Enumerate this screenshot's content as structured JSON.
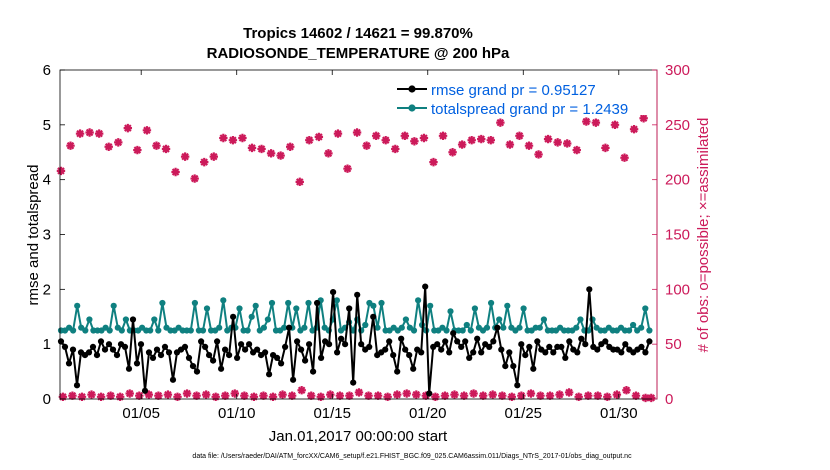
{
  "chart_data": {
    "type": "line",
    "title_line1": "Tropics 14602 / 14621 = 99.870%",
    "title_line2": "RADIOSONDE_TEMPERATURE @ 200 hPa",
    "xlabel": "Jan.01,2017 00:00:00 start",
    "ylabel_left": "rmse and totalspread",
    "ylabel_right": "# of obs: o=possible; ×=assimilated",
    "footer": "data file: /Users/raeder/DAI/ATM_forcXX/CAM6_setup/f.e21.FHIST_BGC.f09_025.CAM6assim.011/Diags_NTrS_2017-01/obs_diag_output.nc",
    "xlim": [
      0.75,
      32.0
    ],
    "ylim_left": [
      0,
      6
    ],
    "ylim_right": [
      0,
      300
    ],
    "left_ticks": [
      "0",
      "1",
      "2",
      "3",
      "4",
      "5",
      "6"
    ],
    "right_ticks": [
      "0",
      "50",
      "100",
      "150",
      "200",
      "250",
      "300"
    ],
    "x_ticks": [
      {
        "label": "01/05",
        "day": 5
      },
      {
        "label": "01/10",
        "day": 10
      },
      {
        "label": "01/15",
        "day": 15
      },
      {
        "label": "01/20",
        "day": 20
      },
      {
        "label": "01/25",
        "day": 25
      },
      {
        "label": "01/30",
        "day": 30
      }
    ],
    "colors": {
      "rmse": "#000000",
      "spread": "#0f8080",
      "obs": "#cc1a5a",
      "legend_text": "#0060e0"
    },
    "series": [
      {
        "name": "rmse grand pr = 0.95127",
        "axis": "left",
        "values": [
          1.05,
          0.95,
          0.65,
          0.9,
          0.25,
          0.85,
          0.8,
          0.85,
          0.95,
          0.8,
          1.05,
          0.9,
          1.0,
          0.9,
          0.8,
          1.0,
          0.95,
          0.55,
          1.45,
          0.65,
          1.0,
          0.15,
          0.85,
          0.75,
          0.9,
          0.8,
          0.95,
          0.85,
          0.35,
          0.85,
          0.9,
          0.95,
          0.75,
          0.6,
          0.5,
          1.05,
          0.95,
          0.8,
          0.7,
          1.05,
          0.55,
          0.9,
          0.8,
          1.5,
          0.75,
          1.0,
          0.9,
          1.0,
          0.85,
          0.9,
          0.8,
          0.85,
          0.45,
          0.8,
          0.75,
          0.65,
          0.95,
          1.3,
          0.35,
          1.05,
          0.9,
          0.7,
          1.0,
          0.5,
          1.75,
          0.75,
          1.05,
          1.0,
          1.95,
          0.85,
          1.1,
          1.0,
          1.65,
          0.3,
          1.9,
          1.0,
          0.9,
          0.95,
          1.5,
          0.8,
          0.85,
          0.9,
          1.05,
          0.8,
          0.5,
          1.1,
          0.9,
          0.8,
          0.55,
          0.9,
          0.85,
          2.05,
          0.1,
          0.95,
          1.0,
          0.9,
          1.05,
          0.85,
          1.2,
          1.05,
          0.95,
          1.05,
          0.75,
          0.85,
          1.1,
          0.85,
          1.0,
          0.95,
          1.05,
          1.3,
          0.9,
          0.6,
          0.85,
          0.6,
          0.25,
          1.0,
          0.8,
          0.95,
          0.55,
          1.05,
          0.9,
          0.85,
          0.95,
          0.85,
          0.95,
          0.95,
          0.75,
          1.05,
          0.9,
          0.85,
          1.1,
          1.0,
          2.0,
          0.95,
          0.9,
          1.0,
          1.05,
          0.95,
          0.9,
          0.9,
          0.85,
          1.0,
          0.9,
          0.85,
          0.9,
          0.95,
          0.85,
          1.05
        ]
      },
      {
        "name": "totalspread grand pr = 1.2439",
        "axis": "left",
        "values": [
          1.25,
          1.25,
          1.3,
          1.25,
          1.7,
          1.3,
          1.25,
          1.45,
          1.25,
          1.25,
          1.25,
          1.3,
          1.25,
          1.7,
          1.3,
          1.25,
          1.45,
          1.25,
          1.25,
          1.25,
          1.3,
          1.25,
          1.25,
          1.45,
          1.25,
          1.75,
          1.3,
          1.25,
          1.25,
          1.3,
          1.25,
          1.25,
          1.25,
          1.75,
          1.25,
          1.25,
          1.65,
          1.25,
          1.25,
          1.3,
          1.8,
          1.25,
          1.3,
          1.3,
          1.65,
          1.25,
          1.25,
          1.5,
          1.7,
          1.25,
          1.3,
          1.45,
          1.75,
          1.25,
          1.25,
          1.3,
          1.75,
          1.3,
          1.65,
          1.25,
          1.3,
          1.75,
          1.25,
          1.3,
          1.8,
          1.3,
          1.25,
          1.45,
          1.8,
          1.25,
          1.3,
          1.4,
          1.25,
          1.45,
          1.25,
          1.35,
          1.75,
          1.7,
          1.3,
          1.75,
          1.25,
          1.25,
          1.3,
          1.25,
          1.3,
          1.45,
          1.3,
          1.25,
          1.8,
          1.35,
          1.25,
          1.7,
          1.25,
          1.25,
          1.3,
          1.25,
          1.6,
          1.25,
          1.25,
          1.25,
          1.35,
          1.25,
          1.65,
          1.3,
          1.25,
          1.3,
          1.75,
          1.3,
          1.45,
          1.3,
          1.7,
          1.3,
          1.25,
          1.3,
          1.65,
          1.25,
          1.25,
          1.3,
          1.3,
          1.45,
          1.25,
          1.25,
          1.25,
          1.3,
          1.25,
          1.25,
          1.25,
          1.3,
          1.45,
          1.25,
          1.25,
          1.45,
          1.3,
          1.25,
          1.25,
          1.3,
          1.25,
          1.25,
          1.3,
          1.25,
          1.25,
          1.35,
          1.25,
          1.3,
          1.65,
          1.25
        ]
      },
      {
        "name": "obs possible / assimilated (upper)",
        "axis": "right",
        "marker": "plus-x",
        "x": [
          0.8,
          1.3,
          1.8,
          2.3,
          2.8,
          3.3,
          3.8,
          4.3,
          4.8,
          5.3,
          5.8,
          6.3,
          6.8,
          7.3,
          7.8,
          8.3,
          8.8,
          9.3,
          9.8,
          10.3,
          10.8,
          11.3,
          11.8,
          12.3,
          12.8,
          13.3,
          13.8,
          14.3,
          14.8,
          15.3,
          15.8,
          16.3,
          16.8,
          17.3,
          17.8,
          18.3,
          18.8,
          19.3,
          19.8,
          20.3,
          20.8,
          21.3,
          21.8,
          22.3,
          22.8,
          23.3,
          23.8,
          24.3,
          24.8,
          25.3,
          25.8,
          26.3,
          26.8,
          27.3,
          27.8,
          28.3,
          28.8,
          29.3,
          29.8,
          30.3,
          30.8,
          31.3
        ],
        "values": [
          208,
          231,
          242,
          243,
          242,
          230,
          234,
          247,
          227,
          245,
          231,
          228,
          207,
          221,
          201,
          216,
          221,
          238,
          236,
          238,
          229,
          228,
          224,
          222,
          230,
          198,
          236,
          239,
          224,
          242,
          210,
          243,
          231,
          240,
          236,
          228,
          240,
          235,
          238,
          216,
          240,
          225,
          232,
          236,
          237,
          236,
          252,
          232,
          240,
          231,
          223,
          237,
          234,
          233,
          227,
          253,
          252,
          229,
          250,
          220,
          246,
          256
        ]
      },
      {
        "name": "obs possible / assimilated (lower)",
        "axis": "right",
        "marker": "plus-x",
        "x": [
          0.9,
          1.4,
          1.9,
          2.4,
          2.9,
          3.4,
          3.9,
          4.4,
          4.9,
          5.4,
          5.9,
          6.4,
          6.9,
          7.4,
          7.9,
          8.4,
          8.9,
          9.4,
          9.9,
          10.4,
          10.9,
          11.4,
          11.9,
          12.4,
          12.9,
          13.4,
          13.9,
          14.4,
          14.9,
          15.4,
          15.9,
          16.4,
          16.9,
          17.4,
          17.9,
          18.4,
          18.9,
          19.4,
          19.9,
          20.4,
          20.9,
          21.4,
          21.9,
          22.4,
          22.9,
          23.4,
          23.9,
          24.4,
          24.9,
          25.4,
          25.9,
          26.4,
          26.9,
          27.4,
          27.9,
          28.4,
          28.9,
          29.4,
          29.9,
          30.4,
          30.9,
          31.4,
          31.7
        ],
        "values": [
          2,
          3,
          2,
          4,
          2,
          3,
          2,
          5,
          3,
          4,
          3,
          4,
          2,
          5,
          3,
          4,
          2,
          3,
          5,
          3,
          2,
          3,
          2,
          4,
          3,
          8,
          3,
          2,
          4,
          3,
          3,
          6,
          3,
          3,
          2,
          4,
          5,
          4,
          3,
          2,
          3,
          4,
          3,
          5,
          3,
          4,
          3,
          2,
          3,
          5,
          3,
          3,
          4,
          6,
          2,
          3,
          3,
          2,
          4,
          8,
          3,
          1,
          1
        ]
      }
    ],
    "legend": [
      {
        "label": "rmse grand pr = 0.95127",
        "series": "rmse"
      },
      {
        "label": "totalspread grand pr = 1.2439",
        "series": "spread"
      }
    ],
    "legend_position": "top-right"
  }
}
